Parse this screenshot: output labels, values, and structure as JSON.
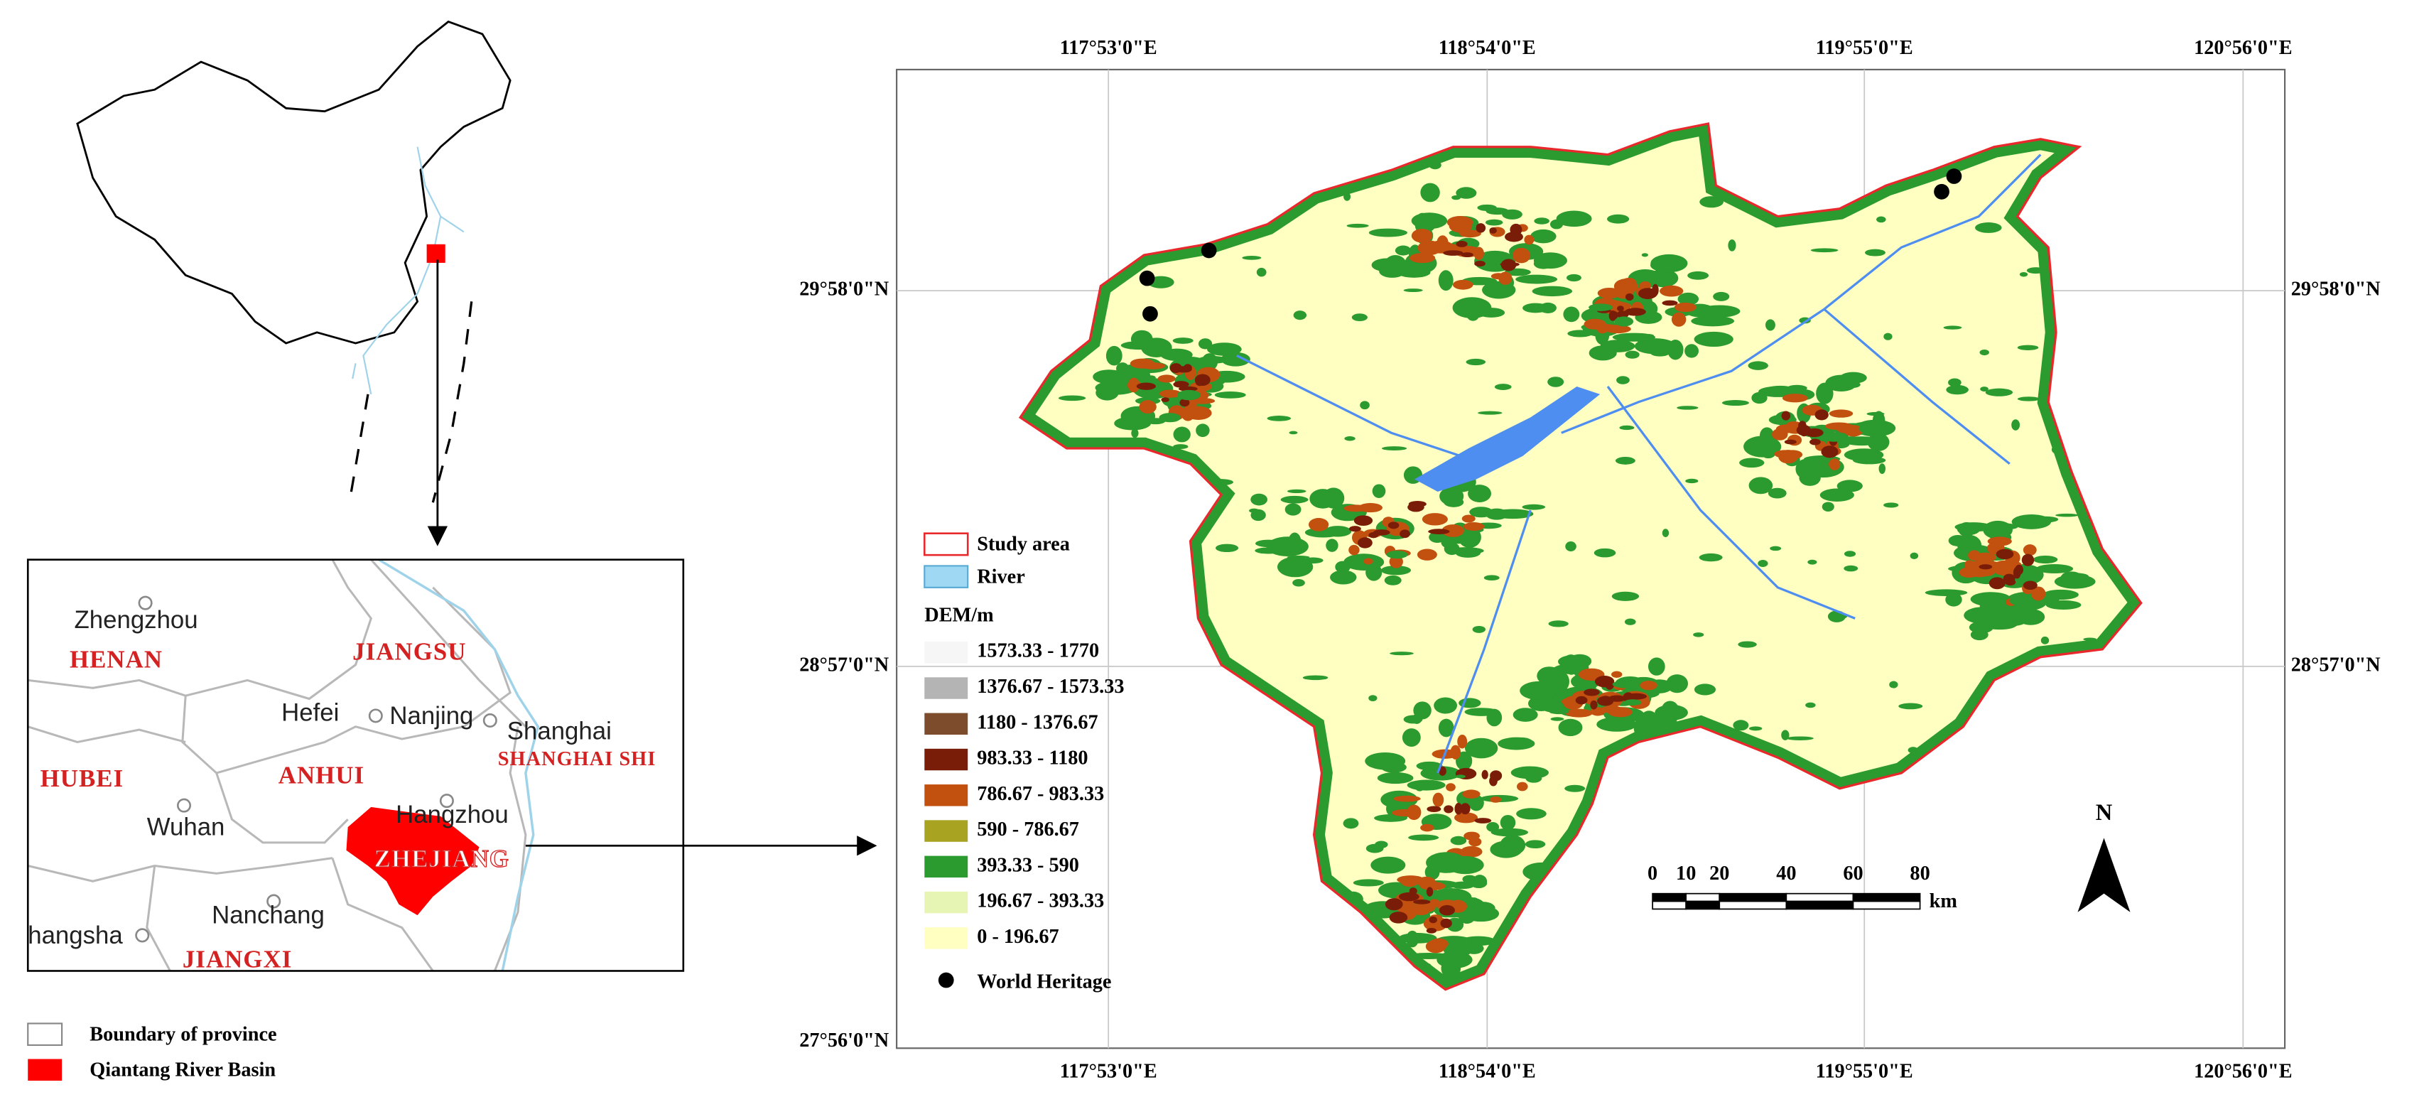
{
  "locator": {
    "inset": {
      "cities": [
        "Zhengzhou",
        "Hefei",
        "Nanjing",
        "Shanghai",
        "Wuhan",
        "Hangzhou",
        "Nanchang",
        "hangsha"
      ],
      "provinces": [
        "HENAN",
        "JIANGSU",
        "HUBEI",
        "ANHUI",
        "SHANGHAI SHI",
        "ZHEJIANG",
        "JIANGXI"
      ]
    },
    "legend": [
      {
        "label": "Boundary of province",
        "color": "#ffffff"
      },
      {
        "label": "Qiantang River Basin",
        "color": "#ff0000"
      }
    ]
  },
  "map": {
    "longitudes": [
      "117°53'0\"E",
      "118°54'0\"E",
      "119°55'0\"E",
      "120°56'0\"E"
    ],
    "latitudes": [
      "29°58'0\"N",
      "28°57'0\"N",
      "27°56'0\"N"
    ],
    "legend": {
      "study_area": "Study area",
      "river": "River",
      "dem_title": "DEM/m",
      "dem_classes": [
        {
          "label": "1573.33 - 1770",
          "color": "#f6f6f6"
        },
        {
          "label": "1376.67 - 1573.33",
          "color": "#b4b4b4"
        },
        {
          "label": "1180 - 1376.67",
          "color": "#7d4c2c"
        },
        {
          "label": "983.33 - 1180",
          "color": "#7a1d08"
        },
        {
          "label": "786.67 - 983.33",
          "color": "#c2500e"
        },
        {
          "label": "590 - 786.67",
          "color": "#a9a322"
        },
        {
          "label": "393.33 - 590",
          "color": "#2b9a2f"
        },
        {
          "label": "196.67 - 393.33",
          "color": "#e6f5b4"
        },
        {
          "label": "0 - 196.67",
          "color": "#ffffc2"
        }
      ],
      "heritage": "World Heritage"
    },
    "scale": {
      "ticks": [
        0,
        10,
        20,
        40,
        60,
        80
      ],
      "unit": "km"
    },
    "north": "N"
  }
}
